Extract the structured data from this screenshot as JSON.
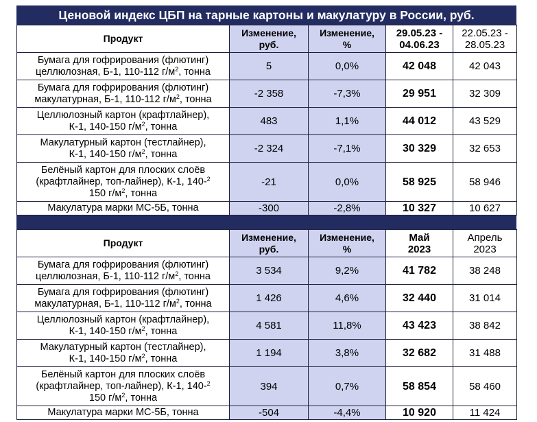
{
  "title": "Ценовой индекс ЦБП на тарные картоны и макулатуру в России, руб.",
  "colors": {
    "header_bg": "#232c60",
    "shade": "#cfd3ef",
    "border": "#1b1f3a"
  },
  "unit_superscript": "2",
  "weekly": {
    "headers": {
      "product": "Продукт",
      "change_rub_1": "Изменение,",
      "change_rub_2": "руб.",
      "change_pct_1": "Изменение,",
      "change_pct_2": "%",
      "current_1": "29.05.23 -",
      "current_2": "04.06.23",
      "previous_1": "22.05.23 -",
      "previous_2": "28.05.23"
    },
    "rows": [
      {
        "p1": "Бумага для гофрирования (флютинг)",
        "p2": "целлюлозная, Б-1, 110-112 г/м",
        "p3": ", тонна",
        "rub": "5",
        "pct": "0,0%",
        "cur": "42 048",
        "prev": "42 043"
      },
      {
        "p1": "Бумага для гофрирования (флютинг)",
        "p2": "макулатурная, Б-1, 110-112 г/м",
        "p3": ", тонна",
        "rub": "-2 358",
        "pct": "-7,3%",
        "cur": "29 951",
        "prev": "32 309"
      },
      {
        "p1": "Целлюлозный картон (крафтлайнер),",
        "p2": "К-1, 140-150 г/м",
        "p3": ", тонна",
        "rub": "483",
        "pct": "1,1%",
        "cur": "44 012",
        "prev": "43 529"
      },
      {
        "p1": "Макулатурный картон (тестлайнер),",
        "p2": "К-1, 140-150 г/м",
        "p3": ", тонна",
        "rub": "-2 324",
        "pct": "-7,1%",
        "cur": "30 329",
        "prev": "32 653"
      },
      {
        "p1": "Белёный картон для плоских слоёв",
        "p2": "(крафтлайнер, топ-лайнер), К-1, 140-",
        "p3a": "150 г/м",
        "p3": ", тонна",
        "rub": "-21",
        "pct": "0,0%",
        "cur": "58 925",
        "prev": "58 946"
      },
      {
        "p1": "Макулатура марки МС-5Б, тонна",
        "rub": "-300",
        "pct": "-2,8%",
        "cur": "10 327",
        "prev": "10 627"
      }
    ]
  },
  "monthly": {
    "headers": {
      "product": "Продукт",
      "change_rub_1": "Изменение,",
      "change_rub_2": "руб.",
      "change_pct_1": "Изменение,",
      "change_pct_2": "%",
      "current_1": "Май",
      "current_2": "2023",
      "previous_1": "Апрель",
      "previous_2": "2023"
    },
    "rows": [
      {
        "p1": "Бумага для гофрирования (флютинг)",
        "p2": "целлюлозная, Б-1, 110-112 г/м",
        "p3": ", тонна",
        "rub": "3 534",
        "pct": "9,2%",
        "cur": "41 782",
        "prev": "38 248"
      },
      {
        "p1": "Бумага для гофрирования (флютинг)",
        "p2": "макулатурная, Б-1, 110-112 г/м",
        "p3": ", тонна",
        "rub": "1 426",
        "pct": "4,6%",
        "cur": "32 440",
        "prev": "31 014"
      },
      {
        "p1": "Целлюлозный картон (крафтлайнер),",
        "p2": "К-1, 140-150 г/м",
        "p3": ", тонна",
        "rub": "4 581",
        "pct": "11,8%",
        "cur": "43 423",
        "prev": "38 842"
      },
      {
        "p1": "Макулатурный картон (тестлайнер),",
        "p2": "К-1, 140-150 г/м",
        "p3": ", тонна",
        "rub": "1 194",
        "pct": "3,8%",
        "cur": "32 682",
        "prev": "31 488"
      },
      {
        "p1": "Белёный картон для плоских слоёв",
        "p2": "(крафтлайнер, топ-лайнер), К-1, 140-",
        "p3a": "150 г/м",
        "p3": ", тонна",
        "rub": "394",
        "pct": "0,7%",
        "cur": "58 854",
        "prev": "58 460"
      },
      {
        "p1": "Макулатура марки МС-5Б, тонна",
        "rub": "-504",
        "pct": "-4,4%",
        "cur": "10 920",
        "prev": "11 424"
      }
    ]
  }
}
